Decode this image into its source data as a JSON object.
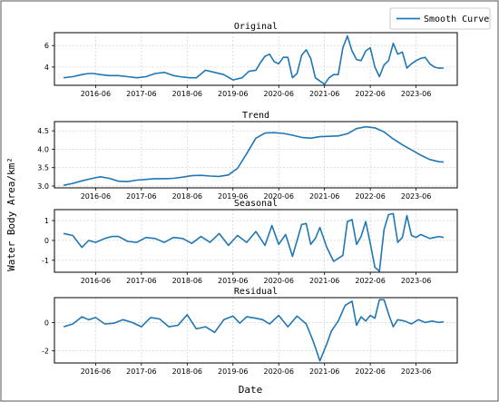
{
  "chart_data": {
    "type": "line",
    "xlabel": "Date",
    "ylabel": "Water Body Area/km²",
    "legend": {
      "label": "Smooth Curve",
      "placement": "top-right"
    },
    "color": "#1f77b4",
    "grid": true,
    "xticks": [
      "2016-06",
      "2017-06",
      "2018-06",
      "2019-06",
      "2020-06",
      "2021-06",
      "2022-06",
      "2023-06"
    ],
    "panels": [
      {
        "title": "Original",
        "ylim": [
          2.3,
          7.2
        ],
        "yticks": [
          4,
          6
        ],
        "x": [
          2015.8,
          2016.0,
          2016.2,
          2016.35,
          2016.45,
          2016.6,
          2016.8,
          2017.0,
          2017.2,
          2017.4,
          2017.6,
          2017.8,
          2018.0,
          2018.2,
          2018.35,
          2018.55,
          2018.7,
          2018.9,
          2019.1,
          2019.3,
          2019.5,
          2019.7,
          2019.85,
          2020.0,
          2020.1,
          2020.2,
          2020.3,
          2020.4,
          2020.5,
          2020.6,
          2020.7,
          2020.8,
          2020.9,
          2021.0,
          2021.1,
          2021.2,
          2021.3,
          2021.4,
          2021.5,
          2021.6,
          2021.7,
          2021.8,
          2021.9,
          2022.0,
          2022.1,
          2022.2,
          2022.3,
          2022.4,
          2022.5,
          2022.6,
          2022.7,
          2022.8,
          2022.9,
          2023.0,
          2023.1,
          2023.2,
          2023.3,
          2023.4,
          2023.5,
          2023.6,
          2023.7,
          2023.8,
          2023.9,
          2024.0,
          2024.1
        ],
        "y": [
          3.0,
          3.1,
          3.3,
          3.4,
          3.4,
          3.3,
          3.2,
          3.2,
          3.1,
          3.0,
          3.1,
          3.4,
          3.5,
          3.2,
          3.1,
          3.0,
          3.0,
          3.7,
          3.5,
          3.3,
          2.8,
          3.0,
          3.6,
          3.7,
          4.4,
          5.0,
          5.2,
          4.5,
          4.3,
          4.9,
          4.9,
          3.0,
          3.4,
          5.1,
          5.6,
          4.8,
          3.0,
          2.7,
          2.4,
          3.0,
          3.3,
          3.3,
          5.8,
          6.9,
          5.5,
          4.7,
          4.6,
          5.5,
          5.8,
          4.0,
          3.1,
          4.2,
          4.6,
          6.2,
          5.2,
          5.4,
          3.9,
          4.3,
          4.6,
          4.8,
          4.9,
          4.3,
          4.0,
          3.9,
          3.9
        ]
      },
      {
        "title": "Trend",
        "ylim": [
          2.95,
          4.75
        ],
        "yticks": [
          3.0,
          3.5,
          4.0,
          4.5
        ],
        "x": [
          2015.8,
          2016.0,
          2016.2,
          2016.4,
          2016.6,
          2016.8,
          2017.0,
          2017.2,
          2017.4,
          2017.6,
          2017.8,
          2018.0,
          2018.2,
          2018.4,
          2018.6,
          2018.8,
          2019.0,
          2019.2,
          2019.4,
          2019.6,
          2019.8,
          2020.0,
          2020.2,
          2020.4,
          2020.6,
          2020.8,
          2021.0,
          2021.2,
          2021.4,
          2021.6,
          2021.8,
          2022.0,
          2022.2,
          2022.4,
          2022.6,
          2022.8,
          2023.0,
          2023.2,
          2023.4,
          2023.6,
          2023.8,
          2024.0,
          2024.1
        ],
        "y": [
          3.02,
          3.07,
          3.14,
          3.2,
          3.25,
          3.21,
          3.13,
          3.12,
          3.16,
          3.18,
          3.2,
          3.2,
          3.21,
          3.24,
          3.28,
          3.29,
          3.27,
          3.26,
          3.3,
          3.48,
          3.88,
          4.3,
          4.44,
          4.45,
          4.43,
          4.38,
          4.32,
          4.3,
          4.34,
          4.35,
          4.36,
          4.42,
          4.56,
          4.61,
          4.58,
          4.47,
          4.28,
          4.12,
          3.98,
          3.84,
          3.72,
          3.66,
          3.65
        ]
      },
      {
        "title": "Seasonal",
        "ylim": [
          -1.6,
          1.55
        ],
        "yticks": [
          -1,
          0,
          1
        ],
        "x": [
          2015.8,
          2016.0,
          2016.2,
          2016.35,
          2016.5,
          2016.7,
          2016.85,
          2017.0,
          2017.2,
          2017.4,
          2017.6,
          2017.8,
          2018.0,
          2018.2,
          2018.4,
          2018.6,
          2018.8,
          2019.0,
          2019.2,
          2019.4,
          2019.6,
          2019.8,
          2020.0,
          2020.2,
          2020.35,
          2020.5,
          2020.65,
          2020.8,
          2021.0,
          2021.1,
          2021.2,
          2021.3,
          2021.4,
          2021.55,
          2021.7,
          2021.9,
          2022.0,
          2022.1,
          2022.2,
          2022.3,
          2022.4,
          2022.5,
          2022.6,
          2022.7,
          2022.8,
          2022.9,
          2023.0,
          2023.1,
          2023.2,
          2023.3,
          2023.4,
          2023.5,
          2023.6,
          2023.7,
          2023.8,
          2023.9,
          2024.0,
          2024.1
        ],
        "y": [
          0.35,
          0.25,
          -0.35,
          0.0,
          -0.1,
          0.1,
          0.2,
          0.2,
          -0.05,
          -0.1,
          0.15,
          0.1,
          -0.1,
          0.15,
          0.1,
          -0.15,
          0.2,
          -0.1,
          0.35,
          -0.25,
          0.25,
          -0.1,
          0.45,
          -0.25,
          0.75,
          -0.2,
          0.3,
          -0.8,
          0.8,
          0.85,
          -0.2,
          0.1,
          0.65,
          -0.35,
          -1.05,
          -0.75,
          0.95,
          1.05,
          -0.2,
          0.2,
          0.95,
          -0.15,
          -1.35,
          -1.55,
          0.55,
          1.3,
          1.35,
          -0.1,
          0.15,
          1.25,
          0.25,
          0.15,
          0.3,
          0.2,
          0.1,
          0.15,
          0.2,
          0.15
        ]
      },
      {
        "title": "Residual",
        "ylim": [
          -2.85,
          1.75
        ],
        "yticks": [
          -2,
          0
        ],
        "x": [
          2015.8,
          2016.0,
          2016.2,
          2016.35,
          2016.5,
          2016.7,
          2016.9,
          2017.1,
          2017.3,
          2017.5,
          2017.7,
          2017.9,
          2018.1,
          2018.3,
          2018.5,
          2018.7,
          2018.9,
          2019.1,
          2019.3,
          2019.5,
          2019.65,
          2019.8,
          2020.0,
          2020.15,
          2020.3,
          2020.5,
          2020.7,
          2020.9,
          2021.1,
          2021.25,
          2021.4,
          2021.55,
          2021.65,
          2021.8,
          2021.95,
          2022.1,
          2022.2,
          2022.3,
          2022.4,
          2022.5,
          2022.6,
          2022.7,
          2022.8,
          2022.9,
          2023.0,
          2023.1,
          2023.25,
          2023.4,
          2023.55,
          2023.7,
          2023.85,
          2024.0,
          2024.1
        ],
        "y": [
          -0.3,
          -0.1,
          0.4,
          0.2,
          0.35,
          -0.1,
          -0.05,
          0.2,
          0.0,
          -0.3,
          0.35,
          0.25,
          -0.3,
          -0.2,
          0.55,
          -0.45,
          -0.3,
          -0.7,
          0.2,
          0.45,
          -0.05,
          0.4,
          0.3,
          0.2,
          -0.1,
          0.5,
          -0.3,
          0.45,
          -0.1,
          -1.3,
          -2.7,
          -1.5,
          -0.6,
          0.1,
          1.2,
          1.5,
          -0.2,
          0.4,
          0.1,
          0.5,
          0.3,
          1.6,
          1.6,
          0.6,
          -0.3,
          0.2,
          0.1,
          -0.1,
          0.2,
          0.0,
          0.1,
          0.0,
          0.05
        ]
      }
    ]
  }
}
